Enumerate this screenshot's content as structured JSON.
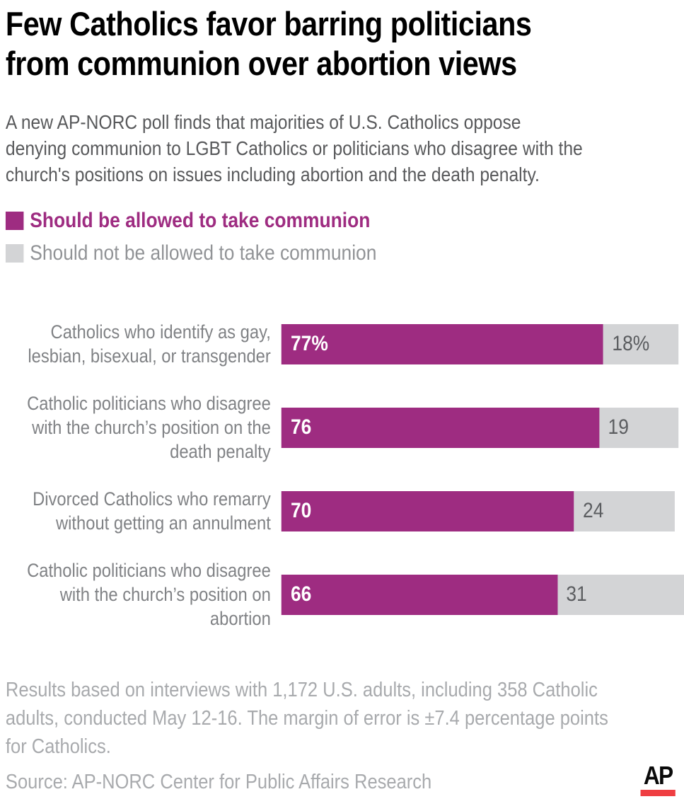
{
  "header": {
    "title": "Few Catholics favor barring politicians\nfrom communion over abortion views",
    "subtitle": "A new AP-NORC poll finds that majorities of U.S. Catholics oppose\ndenying communion to LGBT Catholics or politicians who disagree with the\nchurch's positions on issues including abortion and the death penalty."
  },
  "legend": {
    "items": [
      {
        "label": "Should be allowed to take communion",
        "swatch_color": "#9E2C81",
        "text_color": "#9E2C81",
        "bold": true
      },
      {
        "label": "Should not be allowed to take communion",
        "swatch_color": "#D3D4D6",
        "text_color": "#919396",
        "bold": false
      }
    ]
  },
  "chart_data": {
    "type": "bar",
    "orientation": "horizontal",
    "stacked": true,
    "categories": [
      "Catholics who identify as gay, lesbian, bisexual, or transgender",
      "Catholic politicians who disagree with the church’s position on the death penalty",
      "Divorced Catholics who remarry without getting an annulment",
      "Catholic politicians who disagree with the church’s position on abortion"
    ],
    "series": [
      {
        "name": "Should be allowed to take communion",
        "values": [
          77,
          76,
          70,
          66
        ],
        "color": "#9E2C81"
      },
      {
        "name": "Should not be allowed to take communion",
        "values": [
          18,
          19,
          24,
          31
        ],
        "color": "#D3D4D6"
      }
    ],
    "value_labels": [
      [
        "77%",
        "18%"
      ],
      [
        "76",
        "19"
      ],
      [
        "70",
        "24"
      ],
      [
        "66",
        "31"
      ]
    ],
    "xlim": [
      0,
      100
    ],
    "grid": false,
    "legend_position": "top-left"
  },
  "footer": {
    "notes": "Results based on interviews with 1,172 U.S. adults, including 358 Catholic\nadults, conducted May 12-16. The margin of error is ±7.4 percentage points\nfor Catholics.",
    "source": "Source: AP-NORC Center for Public Affairs Research",
    "logo_text": "AP",
    "logo_bar_color": "#EF3E42"
  },
  "colors": {
    "accent_magenta": "#9E2C81",
    "bar_gray": "#D3D4D6",
    "title_text": "#000000",
    "subtitle_text": "#58595B",
    "category_text": "#808285",
    "footer_text": "#A8AAAD",
    "ap_red": "#EF3E42"
  }
}
